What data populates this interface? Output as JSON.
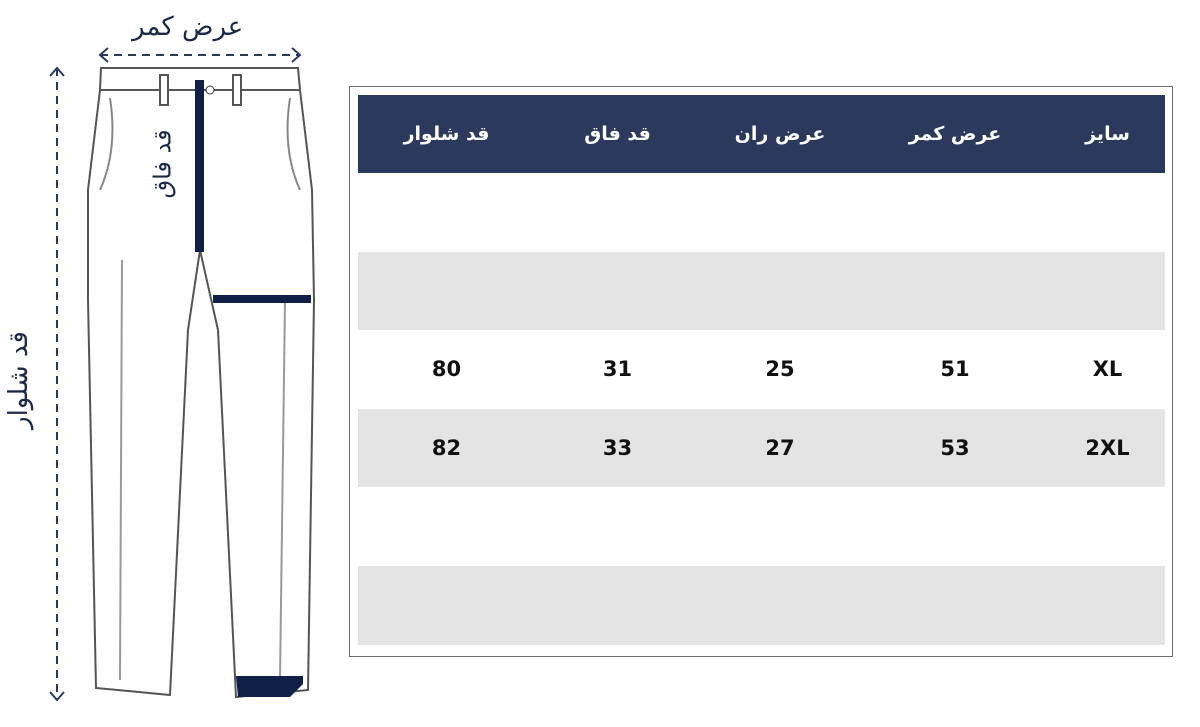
{
  "diagram": {
    "waist_label": "عرض کمر",
    "rise_label": "قد فاق",
    "length_label": "قد شلوار",
    "accent_color": "#0f1f45"
  },
  "table": {
    "header_color": "#2b3a5c",
    "headers": [
      "سایز",
      "عرض کمر",
      "عرض ران",
      "قد فاق",
      "قد شلوار"
    ],
    "rows": [
      [
        "",
        "",
        "",
        "",
        ""
      ],
      [
        "",
        "",
        "",
        "",
        ""
      ],
      [
        "XL",
        "51",
        "25",
        "31",
        "80"
      ],
      [
        "2XL",
        "53",
        "27",
        "33",
        "82"
      ],
      [
        "",
        "",
        "",
        "",
        ""
      ],
      [
        "",
        "",
        "",
        "",
        ""
      ]
    ]
  }
}
